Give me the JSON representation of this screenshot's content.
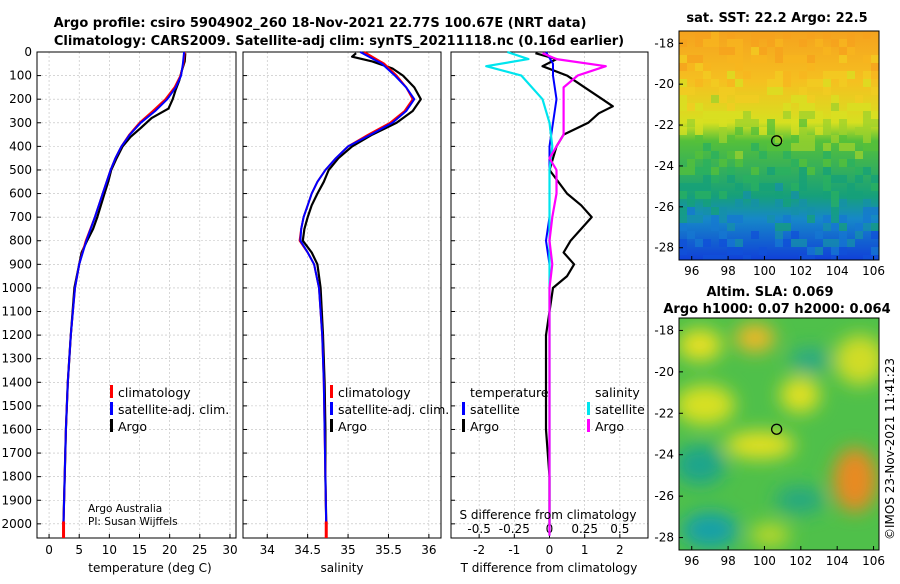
{
  "chart_data": [
    {
      "type": "line",
      "panel": "temperature",
      "title_line1": "Argo profile: csiro 5904902_260 18-Nov-2021 22.77S 100.67E (NRT data)",
      "title_line2": "Climatology: CARS2009. Satellite-adj clim: synTS_20211118.nc (0.16d earlier)",
      "xlabel": "temperature (deg C)",
      "xlim": [
        -2,
        31
      ],
      "ylim": [
        2060,
        0
      ],
      "xticks": [
        "0",
        "5",
        "10",
        "15",
        "20",
        "25",
        "30"
      ],
      "yticks": [
        "0",
        "100",
        "200",
        "300",
        "400",
        "500",
        "600",
        "700",
        "800",
        "900",
        "1000",
        "1100",
        "1200",
        "1300",
        "1400",
        "1500",
        "1600",
        "1700",
        "1800",
        "1900",
        "2000"
      ],
      "legend": [
        "climatology",
        "satellite-adj. clim.",
        "Argo"
      ],
      "credit_line1": "Argo Australia",
      "credit_line2": "PI: Susan Wijffels",
      "series": [
        {
          "name": "climatology",
          "color": "#ff0000",
          "depth": [
            0,
            50,
            100,
            150,
            200,
            250,
            300,
            350,
            400,
            450,
            500,
            600,
            700,
            800,
            900,
            1000,
            1200,
            1400,
            1600,
            1800,
            2000,
            2050
          ],
          "values": [
            22.5,
            22.3,
            21.8,
            20.8,
            19.3,
            17.2,
            15.0,
            13.3,
            12.0,
            11.0,
            10.2,
            8.9,
            7.6,
            6.1,
            5.0,
            4.3,
            3.6,
            3.1,
            2.8,
            2.6,
            2.4,
            2.4
          ]
        },
        {
          "name": "satellite-adj. clim.",
          "color": "#0000ff",
          "depth": [
            0,
            50,
            100,
            150,
            200,
            250,
            300,
            350,
            400,
            450,
            500,
            600,
            700,
            800,
            900,
            1000,
            1200,
            1400,
            1600,
            1800,
            2000,
            2050
          ],
          "values": [
            22.4,
            22.2,
            21.9,
            21.0,
            19.6,
            17.6,
            15.2,
            13.4,
            12.0,
            11.0,
            10.2,
            8.9,
            7.6,
            6.2,
            5.0,
            4.3,
            3.6,
            3.1,
            2.8,
            2.6,
            2.4,
            2.4
          ]
        },
        {
          "name": "Argo",
          "color": "#000000",
          "depth": [
            5,
            40,
            80,
            120,
            160,
            200,
            240,
            280,
            320,
            360,
            400,
            450,
            500,
            550,
            600,
            650,
            700,
            750,
            800,
            850,
            900,
            1000,
            1200,
            1400,
            1600,
            1800,
            1990
          ],
          "values": [
            22.6,
            22.5,
            22.0,
            21.6,
            21.0,
            20.5,
            19.8,
            17.0,
            15.3,
            13.5,
            12.2,
            11.2,
            10.3,
            9.8,
            9.2,
            8.6,
            8.0,
            7.3,
            6.3,
            5.4,
            5.0,
            4.2,
            3.6,
            3.1,
            2.8,
            2.6,
            2.4
          ]
        }
      ]
    },
    {
      "type": "line",
      "panel": "salinity",
      "xlabel": "salinity",
      "xlim": [
        33.7,
        36.15
      ],
      "xticks": [
        "34",
        "34.5",
        "35",
        "35.5",
        "36"
      ],
      "legend": [
        "climatology",
        "satellite-adj. clim.",
        "Argo"
      ],
      "series": [
        {
          "name": "climatology",
          "color": "#ff0000",
          "depth": [
            0,
            50,
            100,
            150,
            200,
            250,
            300,
            350,
            400,
            450,
            500,
            550,
            600,
            650,
            700,
            750,
            800,
            850,
            900,
            1000,
            1200,
            1400,
            1600,
            1800,
            2000,
            2050
          ],
          "values": [
            35.2,
            35.45,
            35.6,
            35.72,
            35.8,
            35.7,
            35.52,
            35.25,
            35.0,
            34.85,
            34.72,
            34.62,
            34.55,
            34.5,
            34.45,
            34.42,
            34.4,
            34.5,
            34.58,
            34.64,
            34.68,
            34.7,
            34.71,
            34.72,
            34.73,
            34.73
          ]
        },
        {
          "name": "satellite-adj. clim.",
          "color": "#0000ff",
          "depth": [
            0,
            50,
            100,
            150,
            200,
            250,
            300,
            350,
            400,
            450,
            500,
            550,
            600,
            650,
            700,
            750,
            800,
            850,
            900,
            1000,
            1200,
            1400,
            1600,
            1800,
            2000,
            2050
          ],
          "values": [
            35.15,
            35.42,
            35.58,
            35.72,
            35.82,
            35.72,
            35.55,
            35.28,
            35.0,
            34.85,
            34.72,
            34.62,
            34.55,
            34.5,
            34.45,
            34.42,
            34.41,
            34.5,
            34.58,
            34.64,
            34.68,
            34.7,
            34.71,
            34.72,
            34.73,
            34.73
          ]
        },
        {
          "name": "Argo",
          "color": "#000000",
          "depth": [
            5,
            20,
            40,
            70,
            100,
            150,
            200,
            250,
            300,
            350,
            400,
            450,
            500,
            550,
            600,
            650,
            700,
            750,
            800,
            850,
            900,
            1000,
            1200,
            1400,
            1600,
            1800,
            1990
          ],
          "values": [
            35.1,
            35.05,
            35.3,
            35.55,
            35.68,
            35.82,
            35.9,
            35.8,
            35.6,
            35.3,
            35.05,
            34.88,
            34.76,
            34.7,
            34.62,
            34.55,
            34.5,
            34.46,
            34.44,
            34.55,
            34.62,
            34.66,
            34.69,
            34.71,
            34.72,
            34.72,
            34.73
          ]
        }
      ]
    },
    {
      "type": "line",
      "panel": "difference",
      "xlabel": "T difference from climatology",
      "xlabel_top": "S difference from climatology",
      "xlim": [
        -2.8,
        2.8
      ],
      "xticks": [
        "-2",
        "-1.5",
        "-1",
        "-0.5",
        "0",
        "0.5",
        "1",
        "1.5",
        "2"
      ],
      "xticks_s": [
        "-0.5",
        "-0.25",
        "0",
        "0.25",
        "0.5"
      ],
      "legend_t_title": "temperature",
      "legend_s_title": "salinity",
      "legend_t": [
        "satellite",
        "Argo"
      ],
      "legend_s": [
        "satellite",
        "Argo"
      ],
      "series": [
        {
          "name": "T satellite",
          "color": "#0000ff",
          "depth": [
            0,
            50,
            100,
            200,
            300,
            400,
            500,
            600,
            700,
            800,
            900,
            1000,
            1500,
            2000
          ],
          "values": [
            -0.1,
            0.1,
            0.1,
            0.2,
            0.1,
            0.0,
            0.0,
            0.0,
            0.0,
            -0.1,
            0.0,
            0.0,
            0.0,
            0.0
          ]
        },
        {
          "name": "T Argo",
          "color": "#000000",
          "depth": [
            5,
            30,
            60,
            100,
            150,
            200,
            230,
            260,
            300,
            350,
            400,
            500,
            600,
            650,
            700,
            750,
            800,
            850,
            900,
            950,
            1000,
            1200,
            1400,
            1600,
            1800,
            2000
          ],
          "values": [
            -0.4,
            0.2,
            -0.2,
            0.5,
            1.0,
            1.5,
            1.8,
            1.4,
            1.1,
            0.4,
            0.2,
            0.0,
            0.5,
            0.9,
            1.2,
            0.9,
            0.6,
            0.4,
            0.7,
            0.5,
            0.1,
            -0.1,
            -0.1,
            -0.1,
            0.0,
            0.0
          ]
        },
        {
          "name": "S satellite",
          "color": "#00e5ee",
          "depth": [
            0,
            30,
            60,
            100,
            200,
            300,
            400,
            500,
            600,
            700,
            800,
            1000,
            1500,
            2000,
            2050
          ],
          "values": [
            -0.3,
            -0.15,
            -0.45,
            -0.2,
            -0.05,
            0.0,
            0.02,
            0.0,
            0.0,
            0.0,
            0.0,
            0.0,
            0.0,
            0.0,
            0.0
          ]
        },
        {
          "name": "S Argo",
          "color": "#ff00ff",
          "depth": [
            5,
            30,
            60,
            100,
            150,
            200,
            250,
            300,
            350,
            400,
            450,
            500,
            550,
            600,
            700,
            800,
            900,
            1000,
            1200,
            1500,
            2000,
            2050
          ],
          "values": [
            -0.05,
            0.05,
            0.4,
            0.2,
            0.1,
            0.1,
            0.1,
            0.1,
            0.1,
            0.05,
            0.0,
            0.05,
            0.05,
            0.05,
            0.02,
            0.0,
            0.02,
            0.0,
            0.0,
            0.0,
            0.0,
            0.0
          ]
        }
      ]
    },
    {
      "type": "heatmap",
      "panel": "sst_map",
      "title": "sat. SST: 22.2  Argo: 22.5",
      "xlim": [
        95.3,
        106.3
      ],
      "ylim": [
        -28.6,
        -17.4
      ],
      "xticks": [
        "96",
        "98",
        "100",
        "102",
        "104",
        "106"
      ],
      "yticks": [
        "-18",
        "-20",
        "-22",
        "-24",
        "-26",
        "-28"
      ],
      "marker": {
        "lon": 100.67,
        "lat": -22.77
      }
    },
    {
      "type": "heatmap",
      "panel": "sla_map",
      "title_line1": "Altim. SLA: 0.069",
      "title_line2": "Argo h1000: 0.07 h2000: 0.064",
      "xlim": [
        95.3,
        106.3
      ],
      "ylim": [
        -28.6,
        -17.4
      ],
      "xticks": [
        "96",
        "98",
        "100",
        "102",
        "104",
        "106"
      ],
      "yticks": [
        "-18",
        "-20",
        "-22",
        "-24",
        "-26",
        "-28"
      ],
      "marker": {
        "lon": 100.67,
        "lat": -22.77
      }
    }
  ],
  "watermark": "©IMOS 23-Nov-2021 11:41:23"
}
